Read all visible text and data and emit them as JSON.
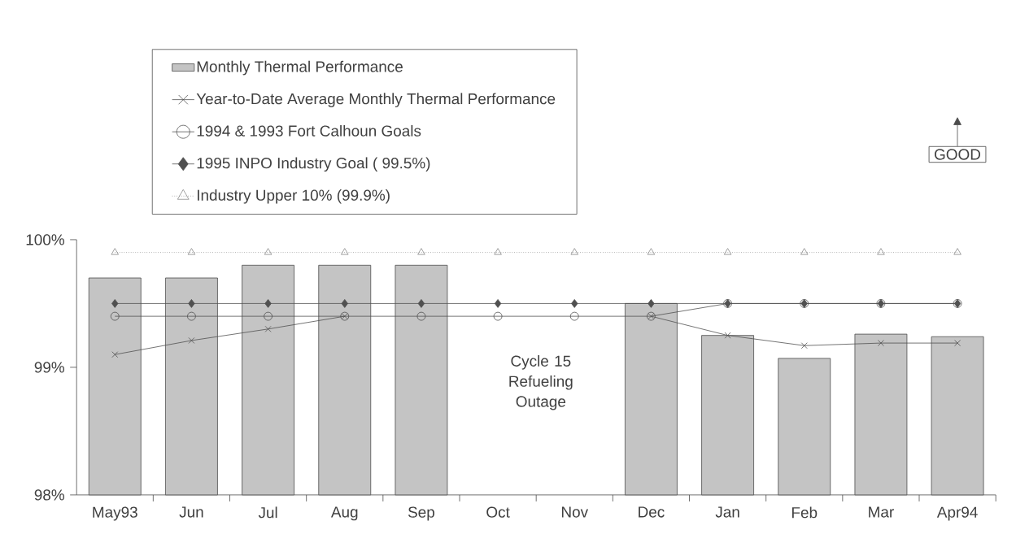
{
  "chart_data": {
    "type": "bar",
    "categories": [
      "May93",
      "Jun",
      "Jul",
      "Aug",
      "Sep",
      "Oct",
      "Nov",
      "Dec",
      "Jan",
      "Feb",
      "Mar",
      "Apr94"
    ],
    "series": [
      {
        "name": "Monthly Thermal Performance",
        "color": "#c4c4c4",
        "values": [
          99.7,
          99.7,
          99.8,
          99.8,
          99.8,
          null,
          null,
          99.5,
          99.25,
          99.07,
          99.26,
          99.24
        ]
      },
      {
        "name": "Year-to-Date Average Monthly Thermal Performance",
        "type": "line",
        "color": "#505050",
        "marker": "cross",
        "line_style": "solid",
        "values": [
          99.1,
          99.21,
          99.3,
          99.4,
          null,
          null,
          null,
          99.4,
          99.25,
          99.17,
          99.19,
          99.19
        ]
      },
      {
        "name": "1994 & 1993 Fort Calhoun Goals",
        "type": "line",
        "color": "#505050",
        "marker": "circle",
        "line_style": "solid",
        "values": [
          99.4,
          99.4,
          99.4,
          99.4,
          99.4,
          99.4,
          99.4,
          99.4,
          99.5,
          99.5,
          99.5,
          99.5
        ]
      },
      {
        "name": "1995 INPO Industry Goal ( 99.5%)",
        "type": "line",
        "color": "#505050",
        "marker": "diamond",
        "line_style": "solid",
        "values": [
          99.5,
          99.5,
          99.5,
          99.5,
          99.5,
          99.5,
          99.5,
          99.5,
          99.5,
          99.5,
          99.5,
          99.5
        ]
      },
      {
        "name": "Industry Upper 10% (99.9%)",
        "type": "line",
        "color": "#8a8a8a",
        "marker": "triangle",
        "line_style": "dotted",
        "values": [
          99.9,
          99.9,
          99.9,
          99.9,
          99.9,
          99.9,
          99.9,
          99.9,
          99.9,
          99.9,
          99.9,
          99.9
        ]
      }
    ],
    "ylim": [
      98,
      100
    ],
    "yticks": [
      {
        "value": 98,
        "label": "98%"
      },
      {
        "value": 99,
        "label": "99%"
      },
      {
        "value": 100,
        "label": "100%"
      }
    ],
    "legend": "top",
    "annotations": [
      "Cycle 15 Refueling Outage",
      "GOOD"
    ]
  }
}
